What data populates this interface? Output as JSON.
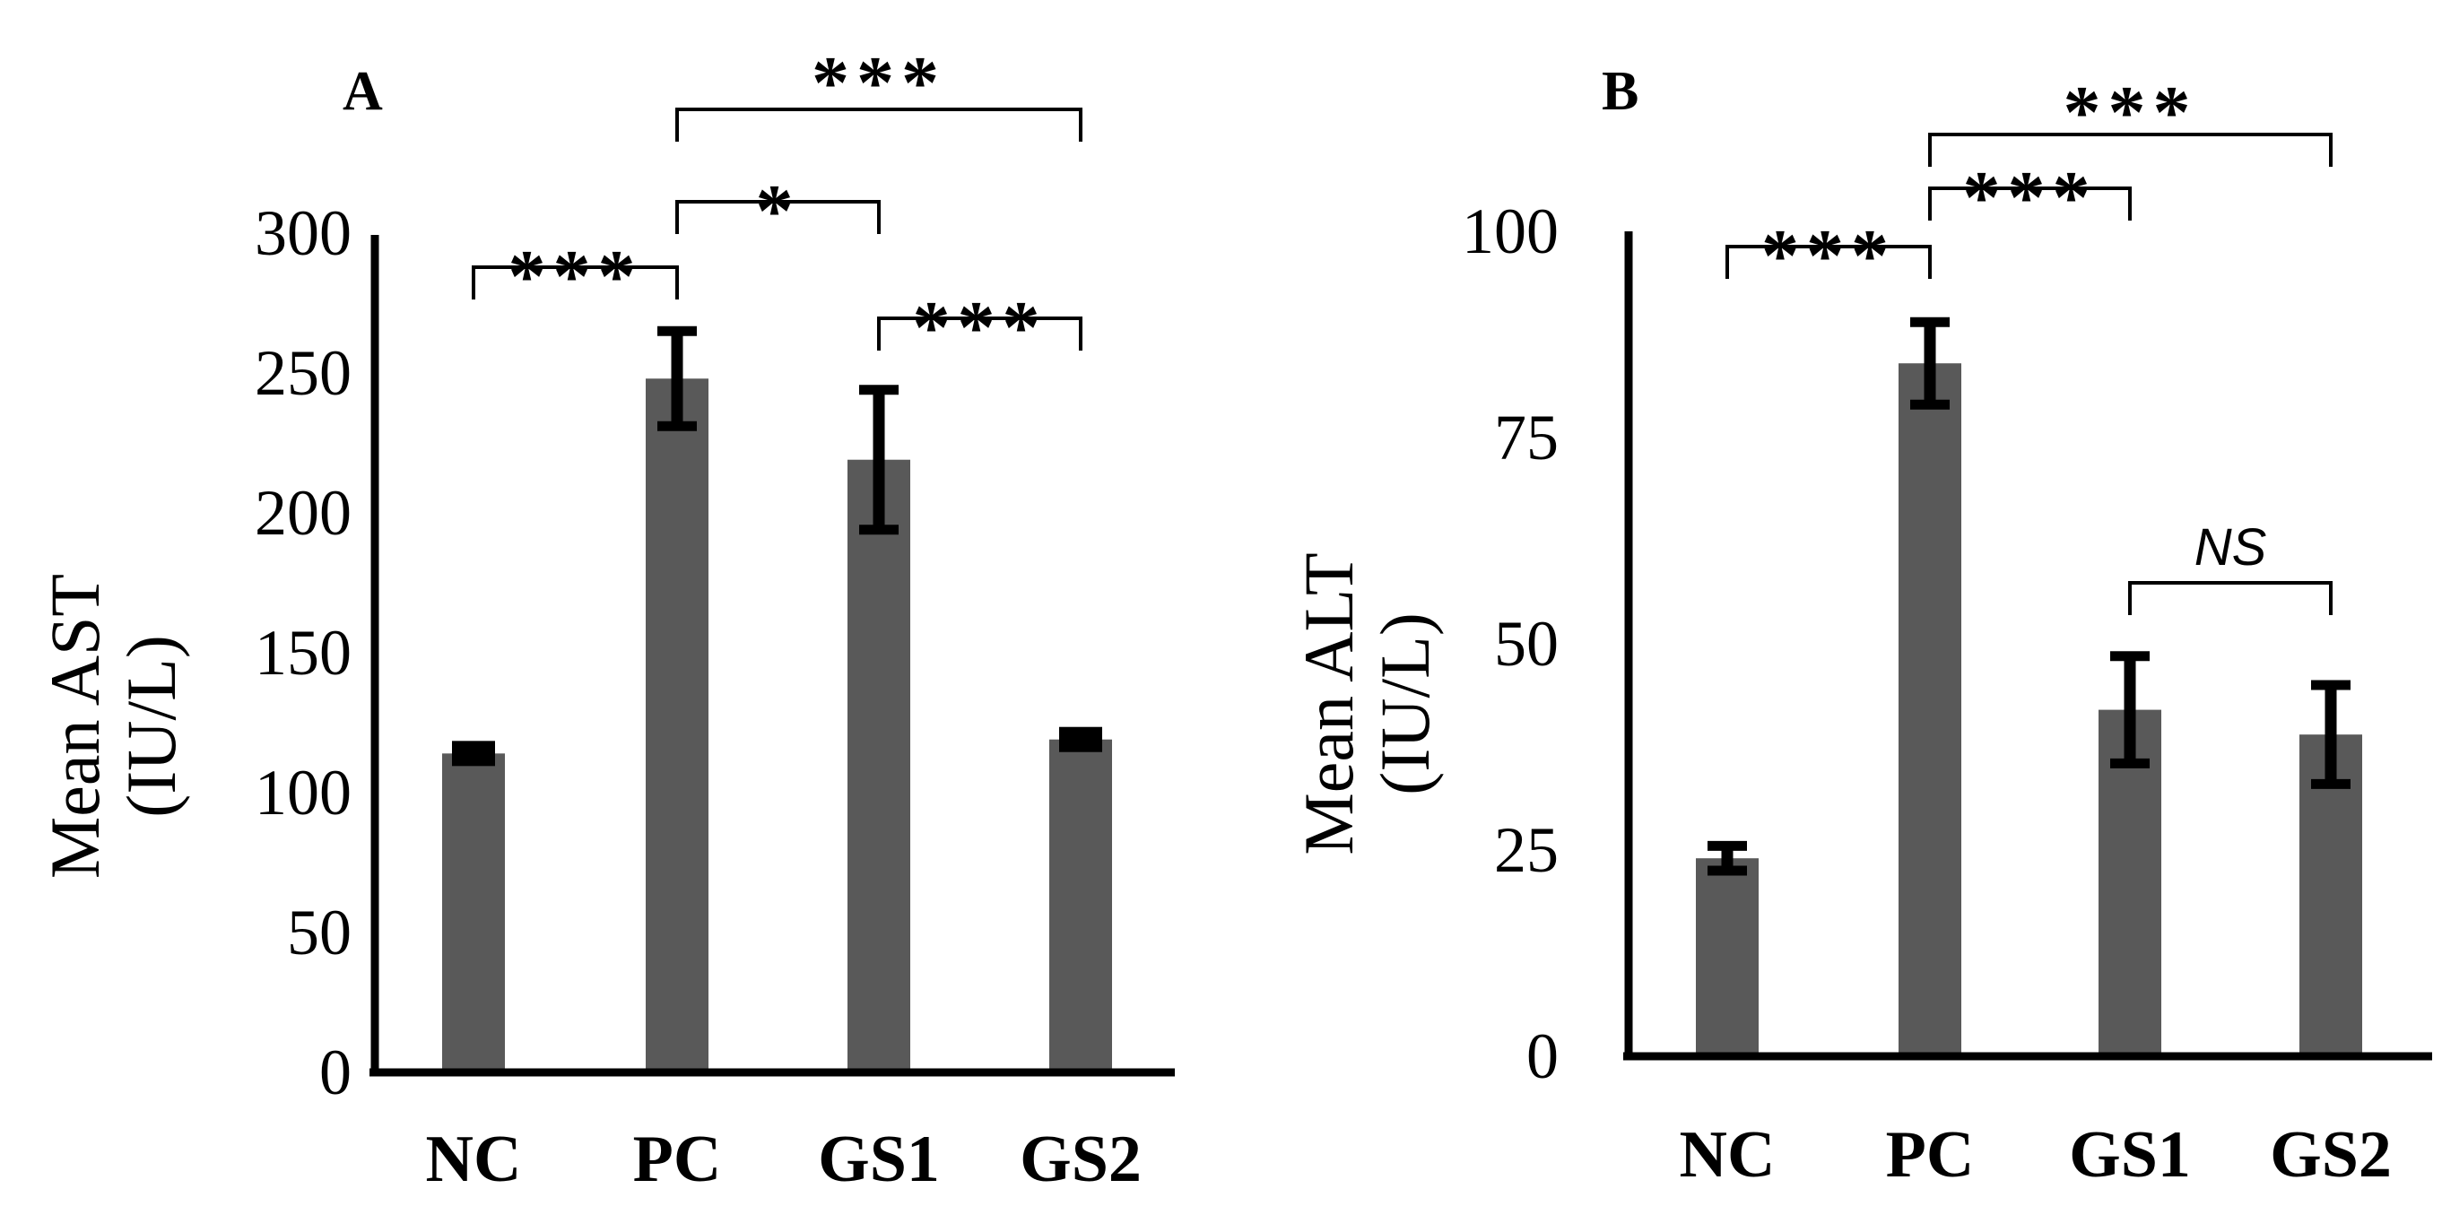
{
  "chart_data": [
    {
      "type": "bar",
      "panel": "A",
      "categories": [
        "NC",
        "PC",
        "GS1",
        "GS2"
      ],
      "values": [
        114,
        248,
        219,
        119
      ],
      "errors": [
        3,
        17,
        25,
        3
      ],
      "ylabel": "Mean AST",
      "yunit": "(IU/L)",
      "ylim": [
        0,
        300
      ],
      "yticks": [
        "0",
        "50",
        "100",
        "150",
        "200",
        "250",
        "300"
      ],
      "bar_color": "#595959",
      "comparisons": [
        {
          "from": 0,
          "to": 1,
          "label": "***",
          "level": 0
        },
        {
          "from": 1,
          "to": 2,
          "label": "*",
          "level": 1
        },
        {
          "from": 2,
          "to": 3,
          "label": "***",
          "level": 2
        },
        {
          "from": 1,
          "to": 3,
          "label": "***",
          "level": 3
        }
      ]
    },
    {
      "type": "bar",
      "panel": "B",
      "categories": [
        "NC",
        "PC",
        "GS1",
        "GS2"
      ],
      "values": [
        24,
        84,
        42,
        39
      ],
      "errors": [
        1.5,
        5,
        6.5,
        6
      ],
      "ylabel": "Mean ALT",
      "yunit": "(IU/L)",
      "ylim": [
        0,
        100
      ],
      "yticks": [
        "0",
        "25",
        "50",
        "75",
        "100"
      ],
      "bar_color": "#595959",
      "comparisons": [
        {
          "from": 0,
          "to": 1,
          "label": "***",
          "level": 0
        },
        {
          "from": 1,
          "to": 2,
          "label": "***",
          "level": 1
        },
        {
          "from": 1,
          "to": 3,
          "label": "***",
          "level": 2
        },
        {
          "from": 2,
          "to": 3,
          "label": "NS",
          "level": 3
        }
      ]
    }
  ]
}
